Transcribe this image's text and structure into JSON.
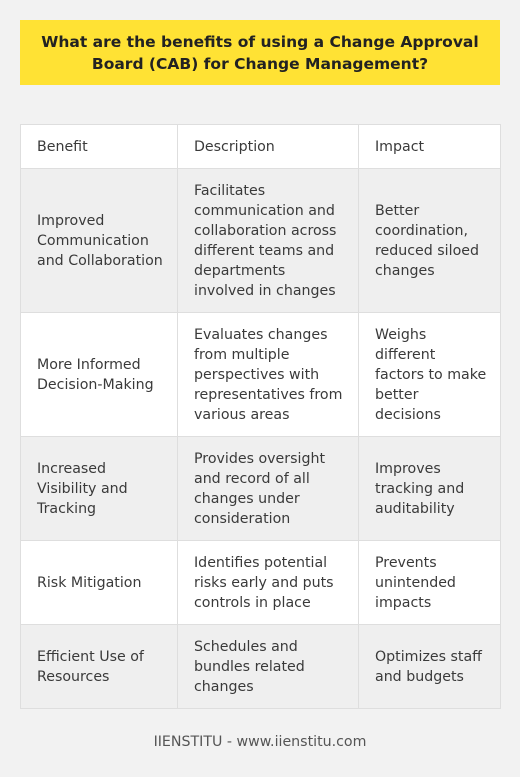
{
  "title": "What are the benefits of using a Change Approval Board (CAB) for Change Management?",
  "table": {
    "headers": [
      "Benefit",
      "Description",
      "Impact"
    ],
    "rows": [
      {
        "benefit": "Improved Communication and Collaboration",
        "description": "Facilitates communication and collaboration across different teams and departments involved in changes",
        "impact": "Better coordination, reduced siloed changes"
      },
      {
        "benefit": "More Informed Decision-Making",
        "description": "Evaluates changes from multiple perspectives with representatives from various areas",
        "impact": "Weighs different factors to make better decisions"
      },
      {
        "benefit": "Increased Visibility and Tracking",
        "description": "Provides oversight and record of all changes under consideration",
        "impact": "Improves tracking and auditability"
      },
      {
        "benefit": "Risk Mitigation",
        "description": "Identifies potential risks early and puts controls in place",
        "impact": "Prevents unintended impacts"
      },
      {
        "benefit": "Efficient Use of Resources",
        "description": "Schedules and bundles related changes",
        "impact": "Optimizes staff and budgets"
      }
    ]
  },
  "footer": "IIENSTITU - www.iienstitu.com",
  "colors": {
    "title_background": "#ffe234",
    "page_background": "#f2f2f2",
    "row_alt_background": "#efefef"
  }
}
